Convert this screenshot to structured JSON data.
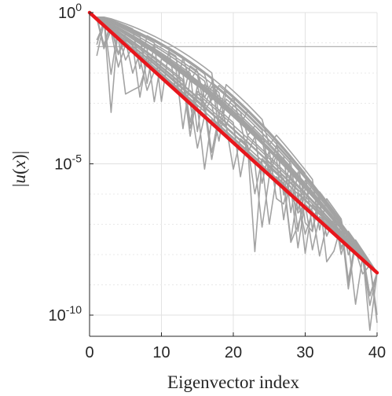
{
  "chart_data": {
    "type": "line",
    "title": "",
    "xlabel": "Eigenvector index",
    "ylabel_parts": [
      "|",
      "u",
      "(",
      "x",
      ")|"
    ],
    "xlim": [
      0,
      40
    ],
    "ylim_log10": [
      -10.7,
      0
    ],
    "log_y": true,
    "grid": true,
    "legend": "none",
    "x_ticks": [
      "0",
      "10",
      "20",
      "30",
      "40"
    ],
    "y_ticks": [
      {
        "base": "10",
        "exp": "0"
      },
      {
        "base": "10",
        "exp": "-5"
      },
      {
        "base": "10",
        "exp": "-10"
      }
    ],
    "reference_line": {
      "color": "#e8161c",
      "x": [
        0,
        40
      ],
      "y_log10": [
        0,
        -8.6
      ]
    },
    "flat_line": {
      "color": "#aaaaaa",
      "x": [
        1,
        40
      ],
      "y": 0.075
    },
    "gray_series_color": "#a3a3a3",
    "gray_series_count": 30,
    "gray_series_start_x": 1,
    "gray_series_end_x": 40
  }
}
